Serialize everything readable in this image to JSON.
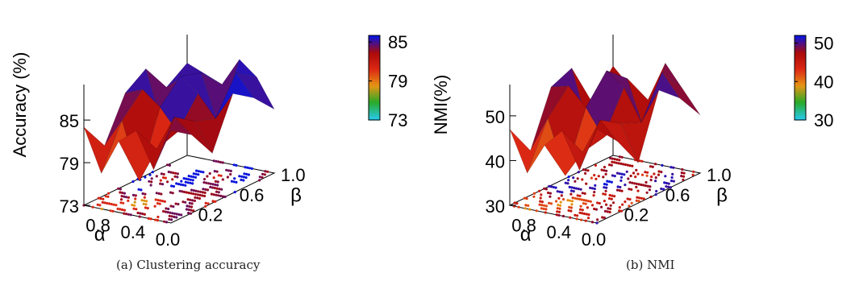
{
  "panels": [
    {
      "caption": "(a)  Clustering accuracy",
      "chart_data": {
        "type": "surface3d",
        "zlabel": "Accuracy (%)",
        "xlabel": "α",
        "ylabel": "β",
        "x_ticks": [
          "0.8",
          "0.4",
          "0.0"
        ],
        "y_ticks": [
          "0.2",
          "0.6",
          "1.0"
        ],
        "z_ticks": [
          "73",
          "79",
          "85"
        ],
        "zlim": [
          73,
          90
        ],
        "colorbar": {
          "ticks": [
            "73",
            "79",
            "85"
          ],
          "range": [
            73,
            86
          ]
        },
        "alpha_values": [
          1.0,
          0.8,
          0.6,
          0.4,
          0.2,
          0.0
        ],
        "beta_values": [
          0.0,
          0.2,
          0.4,
          0.6,
          0.8,
          1.0
        ],
        "z": [
          [
            84,
            80,
            86,
            88,
            84,
            86
          ],
          [
            78,
            84,
            87,
            80,
            86,
            85
          ],
          [
            83,
            76,
            85,
            88,
            87,
            84
          ],
          [
            85,
            81,
            82,
            86,
            80,
            88
          ],
          [
            80,
            86,
            84,
            83,
            88,
            86
          ],
          [
            86,
            84,
            80,
            87,
            85,
            82
          ]
        ]
      }
    },
    {
      "caption": "(b)  NMI",
      "chart_data": {
        "type": "surface3d",
        "zlabel": "NMI(%)",
        "xlabel": "α",
        "ylabel": "β",
        "x_ticks": [
          "0.8",
          "0.4",
          "0.0"
        ],
        "y_ticks": [
          "0.2",
          "0.6",
          "1.0"
        ],
        "z_ticks": [
          "30",
          "40",
          "50"
        ],
        "zlim": [
          30,
          57
        ],
        "colorbar": {
          "ticks": [
            "30",
            "40",
            "50"
          ],
          "range": [
            30,
            52
          ]
        },
        "alpha_values": [
          1.0,
          0.8,
          0.6,
          0.4,
          0.2,
          0.0
        ],
        "beta_values": [
          0.0,
          0.2,
          0.4,
          0.6,
          0.8,
          1.0
        ],
        "z": [
          [
            47,
            40,
            52,
            54,
            44,
            50
          ],
          [
            38,
            48,
            53,
            41,
            50,
            46
          ],
          [
            45,
            36,
            49,
            55,
            51,
            44
          ],
          [
            49,
            42,
            43,
            52,
            40,
            53
          ],
          [
            41,
            50,
            47,
            45,
            54,
            48
          ],
          [
            51,
            46,
            39,
            53,
            49,
            43
          ]
        ]
      }
    }
  ]
}
